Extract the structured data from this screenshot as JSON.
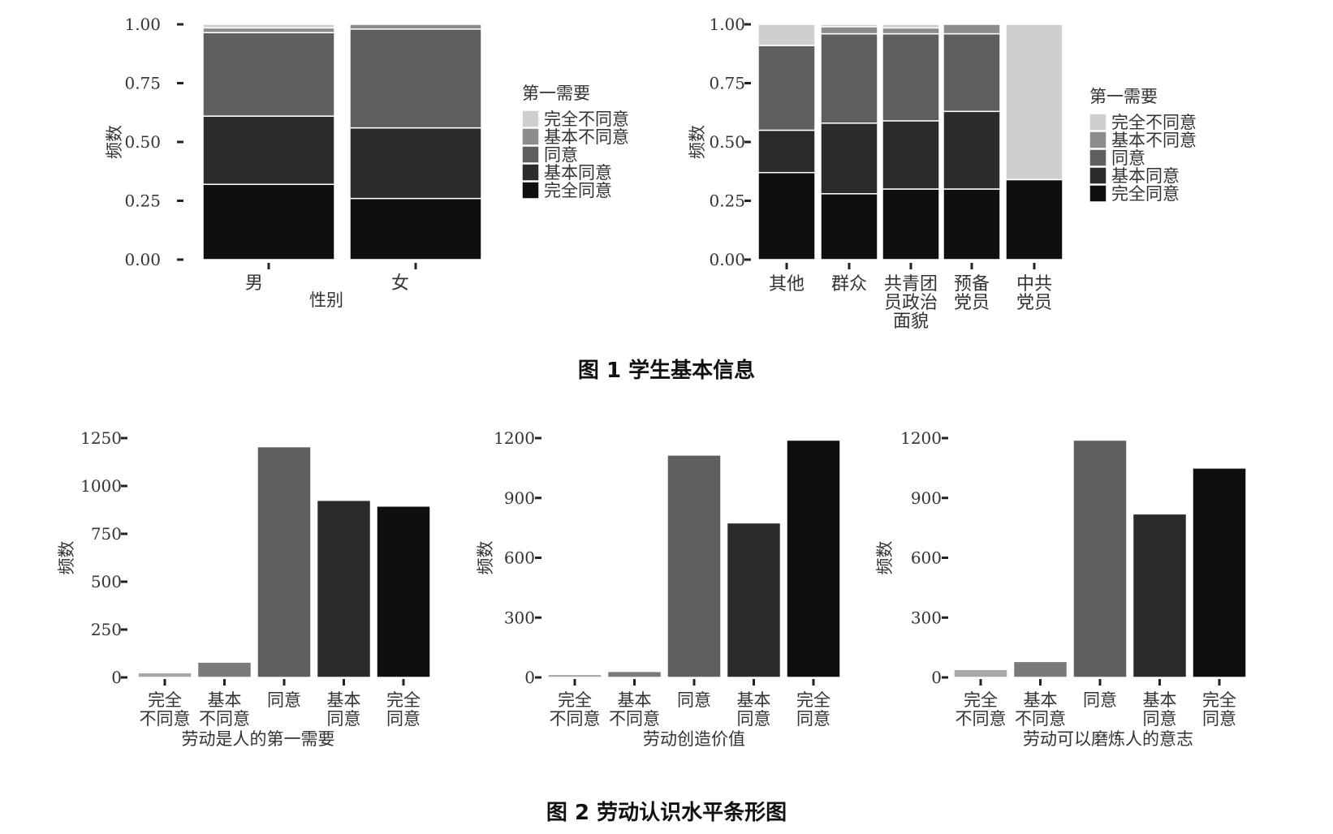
{
  "figure1": {
    "caption": "图 1    学生基本信息",
    "gender_chart": {
      "type": "bar",
      "stacked": true,
      "categories": [
        "男",
        "女"
      ],
      "xlabel": "性别",
      "ylabel": "频数",
      "ylim": [
        0,
        1
      ],
      "y_ticks": [
        "0.00",
        "0.25",
        "0.50",
        "0.75",
        "1.00"
      ],
      "legend_title": "第一需要",
      "legend": [
        "完全不同意",
        "基本不同意",
        "同意",
        "基本同意",
        "完全同意"
      ],
      "series": [
        {
          "name": "完全同意",
          "color": "#0f0f0f",
          "values": [
            0.32,
            0.26
          ]
        },
        {
          "name": "基本同意",
          "color": "#2b2b2b",
          "values": [
            0.29,
            0.3
          ]
        },
        {
          "name": "同意",
          "color": "#5f5f5f",
          "values": [
            0.355,
            0.42
          ]
        },
        {
          "name": "基本不同意",
          "color": "#8c8c8c",
          "values": [
            0.02,
            0.02
          ]
        },
        {
          "name": "完全不同意",
          "color": "#cfcfcf",
          "values": [
            0.015,
            0.0
          ]
        }
      ]
    },
    "politics_chart": {
      "type": "bar",
      "stacked": true,
      "categories": [
        [
          "其他"
        ],
        [
          "群众"
        ],
        [
          "共青团",
          "员政治",
          "面貌"
        ],
        [
          "预备",
          "党员"
        ],
        [
          "中共",
          "党员"
        ]
      ],
      "ylabel": "频数",
      "ylim": [
        0,
        1
      ],
      "y_ticks": [
        "0.00",
        "0.25",
        "0.50",
        "0.75",
        "1.00"
      ],
      "legend_title": "第一需要",
      "legend": [
        "完全不同意",
        "基本不同意",
        "同意",
        "基本同意",
        "完全同意"
      ],
      "series": [
        {
          "name": "完全同意",
          "color": "#0f0f0f",
          "values": [
            0.37,
            0.28,
            0.3,
            0.3,
            0.34
          ]
        },
        {
          "name": "基本同意",
          "color": "#2b2b2b",
          "values": [
            0.18,
            0.3,
            0.29,
            0.33,
            0.0
          ]
        },
        {
          "name": "同意",
          "color": "#5f5f5f",
          "values": [
            0.36,
            0.38,
            0.37,
            0.33,
            0.0
          ]
        },
        {
          "name": "基本不同意",
          "color": "#8c8c8c",
          "values": [
            0.0,
            0.03,
            0.025,
            0.04,
            0.0
          ]
        },
        {
          "name": "完全不同意",
          "color": "#cfcfcf",
          "values": [
            0.09,
            0.01,
            0.015,
            0.0,
            0.66
          ]
        }
      ]
    }
  },
  "figure2": {
    "caption": "图 2    劳动认识水平条形图",
    "charts": [
      {
        "type": "bar",
        "xlabel": "劳动是人的第一需要",
        "ylabel": "频数",
        "ylim": [
          0,
          1250
        ],
        "y_ticks": [
          0,
          250,
          500,
          750,
          1000,
          1250
        ],
        "categories": [
          [
            "完全",
            "不同意"
          ],
          [
            "基本",
            "不同意"
          ],
          [
            "同意"
          ],
          [
            "基本",
            "同意"
          ],
          [
            "完全",
            "同意"
          ]
        ],
        "values": [
          25,
          80,
          1205,
          925,
          895
        ],
        "colors": [
          "#a8a8a8",
          "#7a7a7a",
          "#5f5f5f",
          "#2b2b2b",
          "#0f0f0f"
        ]
      },
      {
        "type": "bar",
        "xlabel": "劳动创造价值",
        "ylabel": "频数",
        "ylim": [
          0,
          1200
        ],
        "y_ticks": [
          0,
          300,
          600,
          900,
          1200
        ],
        "categories": [
          [
            "完全",
            "不同意"
          ],
          [
            "基本",
            "不同意"
          ],
          [
            "同意"
          ],
          [
            "基本",
            "同意"
          ],
          [
            "完全",
            "同意"
          ]
        ],
        "values": [
          15,
          30,
          1115,
          775,
          1190
        ],
        "colors": [
          "#a8a8a8",
          "#7a7a7a",
          "#5f5f5f",
          "#2b2b2b",
          "#0f0f0f"
        ]
      },
      {
        "type": "bar",
        "xlabel": "劳动可以磨炼人的意志",
        "ylabel": "频数",
        "ylim": [
          0,
          1200
        ],
        "y_ticks": [
          0,
          300,
          600,
          900,
          1200
        ],
        "categories": [
          [
            "完全",
            "不同意"
          ],
          [
            "基本",
            "不同意"
          ],
          [
            "同意"
          ],
          [
            "基本",
            "同意"
          ],
          [
            "完全",
            "同意"
          ]
        ],
        "values": [
          40,
          80,
          1190,
          820,
          1050
        ],
        "colors": [
          "#a8a8a8",
          "#7a7a7a",
          "#5f5f5f",
          "#2b2b2b",
          "#0f0f0f"
        ]
      }
    ]
  }
}
